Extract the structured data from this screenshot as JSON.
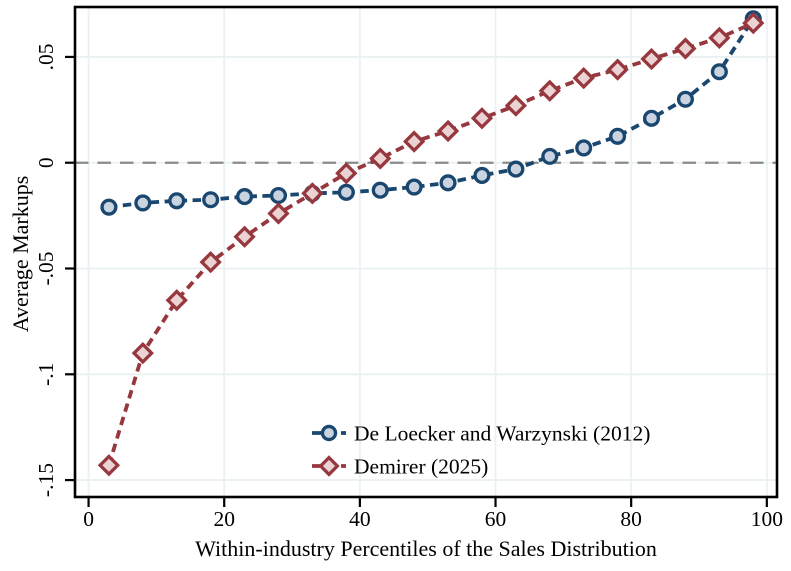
{
  "figure": {
    "x_axis_title": "Within-industry Percentiles of the Sales Distribution",
    "y_axis_title": "Average Markups"
  },
  "chart_data": {
    "type": "line",
    "title": "",
    "xlabel": "Within-industry Percentiles of the Sales Distribution",
    "ylabel": "Average Markups",
    "x": [
      3,
      8,
      13,
      18,
      23,
      28,
      33,
      38,
      43,
      48,
      53,
      58,
      63,
      68,
      73,
      78,
      83,
      88,
      93,
      98
    ],
    "series": [
      {
        "name": "De Loecker and Warzynski (2012)",
        "marker": "circle",
        "line_color": "#1A476F",
        "marker_fill": "#CAD3E0",
        "values": [
          -0.021,
          -0.019,
          -0.018,
          -0.0175,
          -0.016,
          -0.0155,
          -0.0145,
          -0.014,
          -0.013,
          -0.0115,
          -0.0095,
          -0.006,
          -0.003,
          0.003,
          0.007,
          0.0125,
          0.021,
          0.03,
          0.043,
          0.068
        ]
      },
      {
        "name": "Demirer (2025)",
        "marker": "diamond",
        "line_color": "#97383F",
        "marker_fill": "#EBD3D4",
        "values": [
          -0.143,
          -0.09,
          -0.065,
          -0.047,
          -0.035,
          -0.024,
          -0.0145,
          -0.005,
          0.002,
          0.01,
          0.015,
          0.021,
          0.027,
          0.034,
          0.04,
          0.044,
          0.049,
          0.054,
          0.059,
          0.066
        ]
      }
    ],
    "x_ticks": [
      0,
      20,
      40,
      60,
      80,
      100
    ],
    "x_tick_labels": [
      "0",
      "20",
      "40",
      "60",
      "80",
      "100"
    ],
    "y_ticks": [
      0.05,
      0,
      -0.05,
      -0.1,
      -0.15
    ],
    "y_tick_labels": [
      ".05",
      "0",
      "-.05",
      "-.1",
      "-.15"
    ],
    "xlim": [
      -2,
      101.5
    ],
    "ylim": [
      -0.158,
      0.0736
    ],
    "reference_line_y": 0,
    "grid": true,
    "legend_position": "inside-lower-center",
    "style": {
      "background": "#FFFFFF",
      "grid_color": "#E9F1F2",
      "zero_line_color": "#8A8A8A",
      "axis_color": "#000000",
      "text_color": "#000000"
    }
  }
}
